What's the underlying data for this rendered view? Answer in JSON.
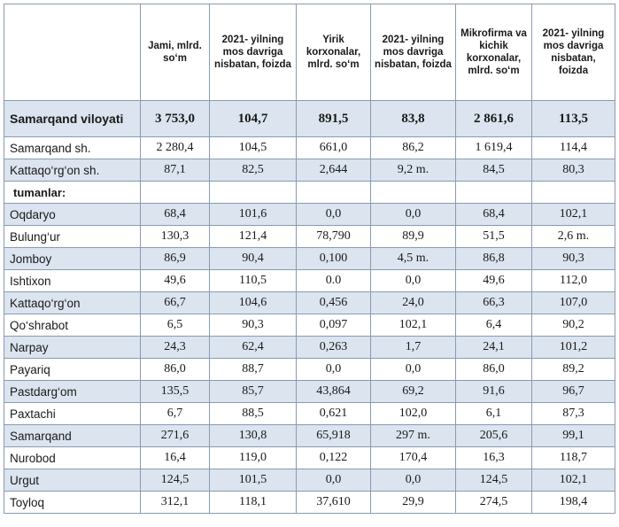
{
  "headers": [
    "",
    "Jami, mlrd. so‘m",
    "2021- yilning mos davriga nisbatan, foizda",
    "Yirik korxonalar, mlrd. so‘m",
    "2021- yilning mos davriga nisbatan, foizda",
    "Mikrofirma va kichik korxonalar, mlrd. so‘m",
    "2021- yilning mos davriga nisbatan, foizda"
  ],
  "rows": [
    [
      "Samarqand viloyati",
      "3 753,0",
      "104,7",
      "891,5",
      "83,8",
      "2 861,6",
      "113,5"
    ],
    [
      "Samarqand sh.",
      "2 280,4",
      "104,5",
      "661,0",
      "86,2",
      "1 619,4",
      "114,4"
    ],
    [
      "Kattaqo‘rg‘on  sh.",
      "87,1",
      "82,5",
      "2,644",
      "9,2 m.",
      "84,5",
      "80,3"
    ],
    [
      "tumanlar:",
      "",
      "",
      "",
      "",
      "",
      ""
    ],
    [
      "Oqdaryo",
      "68,4",
      "101,6",
      "0,0",
      "0,0",
      "68,4",
      "102,1"
    ],
    [
      "Bulung‘ur",
      "130,3",
      "121,4",
      "78,790",
      "89,9",
      "51,5",
      "2,6 m."
    ],
    [
      "Jomboy",
      "86,9",
      "90,4",
      "0,100",
      "4,5 m.",
      "86,8",
      "90,3"
    ],
    [
      "Ishtixon",
      "49,6",
      "110,5",
      "0.0",
      "0,0",
      "49,6",
      "112,0"
    ],
    [
      "Kattaqo‘rg‘on",
      "66,7",
      "104,6",
      "0,456",
      "24,0",
      "66,3",
      "107,0"
    ],
    [
      "Qo‘shrabot",
      "6,5",
      "90,3",
      "0,097",
      "102,1",
      "6,4",
      "90,2"
    ],
    [
      "Narpay",
      "24,3",
      "62,4",
      "0,263",
      "1,7",
      "24,1",
      "101,2"
    ],
    [
      "Payariq",
      "86,0",
      "88,7",
      "0,0",
      "0,0",
      "86,0",
      "89,2"
    ],
    [
      "Pastdarg‘om",
      "135,5",
      "85,7",
      "43,864",
      "69,2",
      "91,6",
      "96,7"
    ],
    [
      "Paxtachi",
      "6,7",
      "88,5",
      "0,621",
      "102,0",
      "6,1",
      "87,3"
    ],
    [
      "Samarqand",
      "271,6",
      "130,8",
      "65,918",
      "297 m.",
      "205,6",
      "99,1"
    ],
    [
      "Nurobod",
      "16,4",
      "119,0",
      "0,122",
      "170,4",
      "16,3",
      "118,7"
    ],
    [
      "Urgut",
      "124,5",
      "101,5",
      "0,0",
      "0,0",
      "124,5",
      "102,1"
    ],
    [
      "Toyloq",
      "312,1",
      "118,1",
      "37,610",
      "29,9",
      "274,5",
      "198,4"
    ]
  ]
}
